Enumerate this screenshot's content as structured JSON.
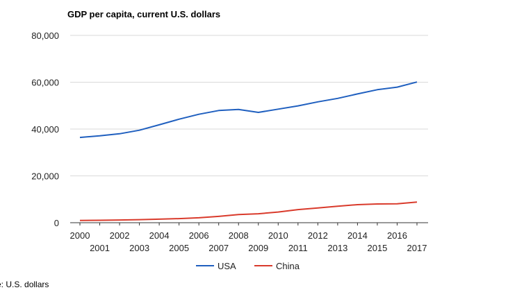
{
  "chart_data": {
    "type": "line",
    "title": "GDP per capita, current U.S. dollars",
    "xlabel": "",
    "ylabel": "",
    "x": [
      2000,
      2001,
      2002,
      2003,
      2004,
      2005,
      2006,
      2007,
      2008,
      2009,
      2010,
      2011,
      2012,
      2013,
      2014,
      2015,
      2016,
      2017
    ],
    "x_tick_labels": [
      "2000",
      "2001",
      "2002",
      "2003",
      "2004",
      "2005",
      "2006",
      "2007",
      "2008",
      "2009",
      "2010",
      "2011",
      "2012",
      "2013",
      "2014",
      "2015",
      "2016",
      "2017"
    ],
    "ylim": [
      0,
      80000
    ],
    "y_ticks": [
      0,
      20000,
      40000,
      60000,
      80000
    ],
    "y_tick_labels": [
      "0",
      "20,000",
      "40,000",
      "60,000",
      "80,000"
    ],
    "grid": true,
    "legend_position": "bottom",
    "series": [
      {
        "name": "USA",
        "color": "#1f5fbf",
        "values": [
          36400,
          37100,
          38000,
          39500,
          41800,
          44200,
          46300,
          47900,
          48400,
          47100,
          48500,
          49900,
          51600,
          53100,
          55000,
          56800,
          57900,
          60100
        ]
      },
      {
        "name": "China",
        "color": "#d93a2b",
        "values": [
          950,
          1050,
          1150,
          1290,
          1510,
          1750,
          2100,
          2700,
          3470,
          3830,
          4550,
          5600,
          6300,
          7050,
          7700,
          8000,
          8100,
          8800
        ]
      }
    ]
  },
  "footer": {
    "source_text": "e: U.S. dollars"
  }
}
